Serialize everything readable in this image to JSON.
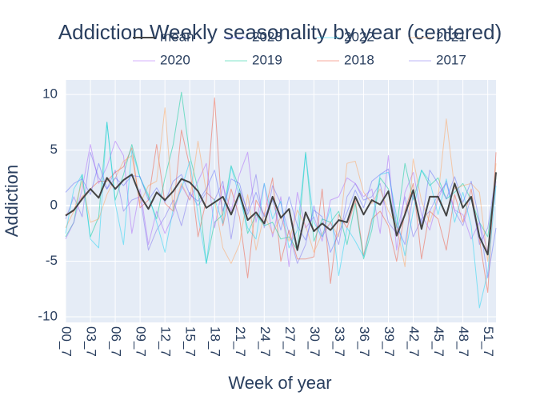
{
  "chart_data": {
    "type": "line",
    "title": "Addiction Weekly seasonality by year (centered)",
    "x_label": "Week of year",
    "y_label": "Addiction",
    "categories": [
      "00_7",
      null,
      null,
      "03_7",
      null,
      null,
      "06_7",
      null,
      null,
      "09_7",
      null,
      null,
      "12_7",
      null,
      null,
      "15_7",
      null,
      null,
      "18_7",
      null,
      null,
      "21_7",
      null,
      null,
      "24_7",
      null,
      null,
      "27_7",
      null,
      null,
      "30_7",
      null,
      null,
      "33_7",
      null,
      null,
      "36_7",
      null,
      null,
      "39_7",
      null,
      null,
      "42_7",
      null,
      null,
      "45_7",
      null,
      null,
      "48_7",
      null,
      null,
      "51_7",
      null
    ],
    "ylim": [
      -10.5,
      11.3
    ],
    "yticks": [
      -10,
      -5,
      0,
      5,
      10
    ],
    "grid": true,
    "series": [
      {
        "name": "mean",
        "color": "#444444",
        "width": 2,
        "opacity": 1,
        "values": [
          -0.9,
          -0.4,
          0.6,
          1.5,
          0.7,
          2.5,
          1.5,
          2.3,
          2.8,
          0.9,
          -0.3,
          1.2,
          0.5,
          1.3,
          2.4,
          2.1,
          1.3,
          -0.2,
          0.3,
          0.8,
          -0.8,
          1.1,
          -1.3,
          -0.6,
          -1.6,
          0.8,
          -1.1,
          -0.3,
          -4,
          -0.6,
          -2.3,
          -1.6,
          -2.2,
          -1.3,
          -1.5,
          0.8,
          -0.8,
          0.5,
          0.1,
          1.3,
          -2.7,
          -0.8,
          1.4,
          -2.1,
          0.8,
          0.8,
          -0.9,
          2.0,
          -0.2,
          0.8,
          -2.8,
          -4.4,
          3.0
        ]
      },
      {
        "name": "2023",
        "color": "#636efa",
        "width": 1,
        "opacity": 0.5,
        "values": [
          1.2,
          2.0,
          2.4,
          1.0,
          3.8,
          1.5,
          2.5,
          1.8,
          2.7,
          2.6,
          0.5,
          1.6,
          0.3,
          2.2,
          2.8,
          1.0,
          0.4,
          1.5,
          3.2,
          -0.5,
          2.4,
          2.0,
          -0.8,
          1.2,
          -1.0,
          0.5,
          -2.2,
          0.8,
          -1.8,
          -3.1,
          -0.4,
          -1.0,
          -4.2,
          -2.5,
          -0.6,
          1.4,
          -0.2,
          2.2,
          2.8,
          3.3,
          -1.8,
          -3.5,
          1.0,
          -1.6,
          3.2,
          2.0,
          0.6,
          2.6,
          0.3,
          2.2,
          -1.4,
          -6.5,
          -2.0
        ]
      },
      {
        "name": "2022",
        "color": "#19d3f3",
        "width": 1,
        "opacity": 0.5,
        "values": [
          -2.5,
          1.5,
          2.8,
          -3.0,
          -3.8,
          7.5,
          0.2,
          -3.5,
          5.0,
          2.5,
          1.0,
          -1.5,
          -4.2,
          -0.3,
          1.5,
          4.0,
          -0.8,
          -5.2,
          0.6,
          -1.6,
          3.5,
          0.8,
          -2.0,
          -3.0,
          2.0,
          -1.2,
          0.4,
          -3.8,
          -2.2,
          4.7,
          -1.5,
          -2.8,
          -0.2,
          -6.3,
          -2.0,
          -3.2,
          -4.6,
          -1.5,
          2.8,
          3.0,
          -1.0,
          -4.5,
          -0.5,
          3.2,
          2.2,
          -0.8,
          2.4,
          -1.5,
          1.2,
          -1.8,
          -9.2,
          -6.0,
          1.8
        ]
      },
      {
        "name": "2021",
        "color": "#FFA15A",
        "width": 1,
        "opacity": 0.5,
        "values": [
          -2.0,
          -0.5,
          2.2,
          -1.5,
          -1.2,
          1.0,
          2.5,
          4.0,
          4.5,
          0.2,
          1.8,
          2.2,
          8.8,
          -0.5,
          2.0,
          0.5,
          5.8,
          1.2,
          0.5,
          -3.8,
          -5.2,
          -3.5,
          1.0,
          -4.0,
          -0.8,
          -2.5,
          -1.0,
          -3.2,
          -0.4,
          -1.8,
          -4.2,
          -2.5,
          -1.5,
          -2.8,
          3.8,
          4.0,
          1.2,
          0.2,
          1.5,
          -0.5,
          -1.8,
          -5.5,
          4.2,
          0.4,
          -1.5,
          0.8,
          7.8,
          1.5,
          1.8,
          2.0,
          1.2,
          -5.0,
          3.8
        ]
      },
      {
        "name": "2020",
        "color": "#ab63fa",
        "width": 1,
        "opacity": 0.5,
        "values": [
          -3.0,
          -1.5,
          1.5,
          5.5,
          2.0,
          3.5,
          5.8,
          4.5,
          -2.5,
          1.5,
          -3.5,
          -0.5,
          -2.5,
          -0.8,
          1.8,
          0.5,
          2.2,
          3.8,
          -2.0,
          1.8,
          -0.5,
          2.8,
          4.8,
          -1.5,
          2.0,
          -2.8,
          0.8,
          -5.5,
          1.2,
          -2.0,
          -1.0,
          -3.2,
          0.5,
          0.8,
          2.5,
          2.0,
          0.8,
          1.5,
          -2.5,
          4.5,
          -4.0,
          1.2,
          3.0,
          -0.8,
          -2.2,
          0.6,
          2.2,
          -0.4,
          -0.8,
          -3.0,
          -1.5,
          -4.2,
          2.2
        ]
      },
      {
        "name": "2019",
        "color": "#00cc96",
        "width": 1,
        "opacity": 0.5,
        "values": [
          -2.8,
          -1.5,
          2.8,
          -2.8,
          -1.0,
          7.5,
          0.5,
          2.8,
          5.5,
          2.5,
          0.8,
          -1.2,
          2.5,
          5.5,
          10.2,
          4.5,
          1.5,
          -5.2,
          -1.5,
          -0.8,
          3.6,
          1.5,
          -2.5,
          -0.8,
          -1.8,
          -1.5,
          -3.0,
          -2.8,
          -4.0,
          4.8,
          -3.2,
          -1.2,
          -1.5,
          -0.5,
          -3.5,
          0.2,
          -4.8,
          -2.2,
          2.5,
          1.5,
          -2.0,
          3.8,
          0.5,
          3.2,
          1.8,
          2.5,
          0.6,
          1.2,
          2.0,
          0.5,
          -1.5,
          -2.8,
          2.5
        ]
      },
      {
        "name": "2018",
        "color": "#EF553B",
        "width": 1,
        "opacity": 0.5,
        "values": [
          -0.8,
          -0.5,
          0.8,
          1.5,
          2.2,
          2.2,
          3.0,
          3.5,
          5.2,
          -0.2,
          0.5,
          5.5,
          0.2,
          -0.5,
          6.8,
          3.5,
          -2.8,
          0.5,
          9.7,
          -1.8,
          1.5,
          -1.0,
          -6.5,
          0.5,
          -0.8,
          2.5,
          -5.0,
          -2.2,
          -4.8,
          -4.8,
          -4.6,
          1.5,
          -7.0,
          -0.8,
          -2.0,
          0.5,
          -4.5,
          -1.2,
          -0.5,
          -1.8,
          -5.0,
          -0.5,
          2.0,
          -4.8,
          -0.5,
          -1.2,
          -4.0,
          1.0,
          -1.5,
          1.5,
          -3.0,
          -7.8,
          4.8
        ]
      },
      {
        "name": "2017",
        "color": "#7b6ef0",
        "width": 1,
        "opacity": 0.5,
        "values": [
          -1.2,
          0.8,
          -1.0,
          4.8,
          2.5,
          1.5,
          3.2,
          -0.5,
          0.5,
          0.8,
          -4.0,
          -2.2,
          -1.0,
          0.5,
          -1.8,
          1.2,
          0.0,
          1.2,
          0.5,
          2.2,
          -3.0,
          1.5,
          -0.5,
          2.8,
          -2.0,
          1.8,
          0.2,
          -2.5,
          -5.2,
          -3.5,
          0.0,
          -2.8,
          -1.5,
          -3.5,
          0.8,
          2.0,
          0.5,
          0.8,
          2.0,
          -1.5,
          -2.5,
          0.8,
          -2.8,
          -1.2,
          -0.5,
          1.0,
          2.0,
          -0.5,
          -1.8,
          0.8,
          -3.5,
          -2.0,
          2.8
        ]
      }
    ]
  }
}
